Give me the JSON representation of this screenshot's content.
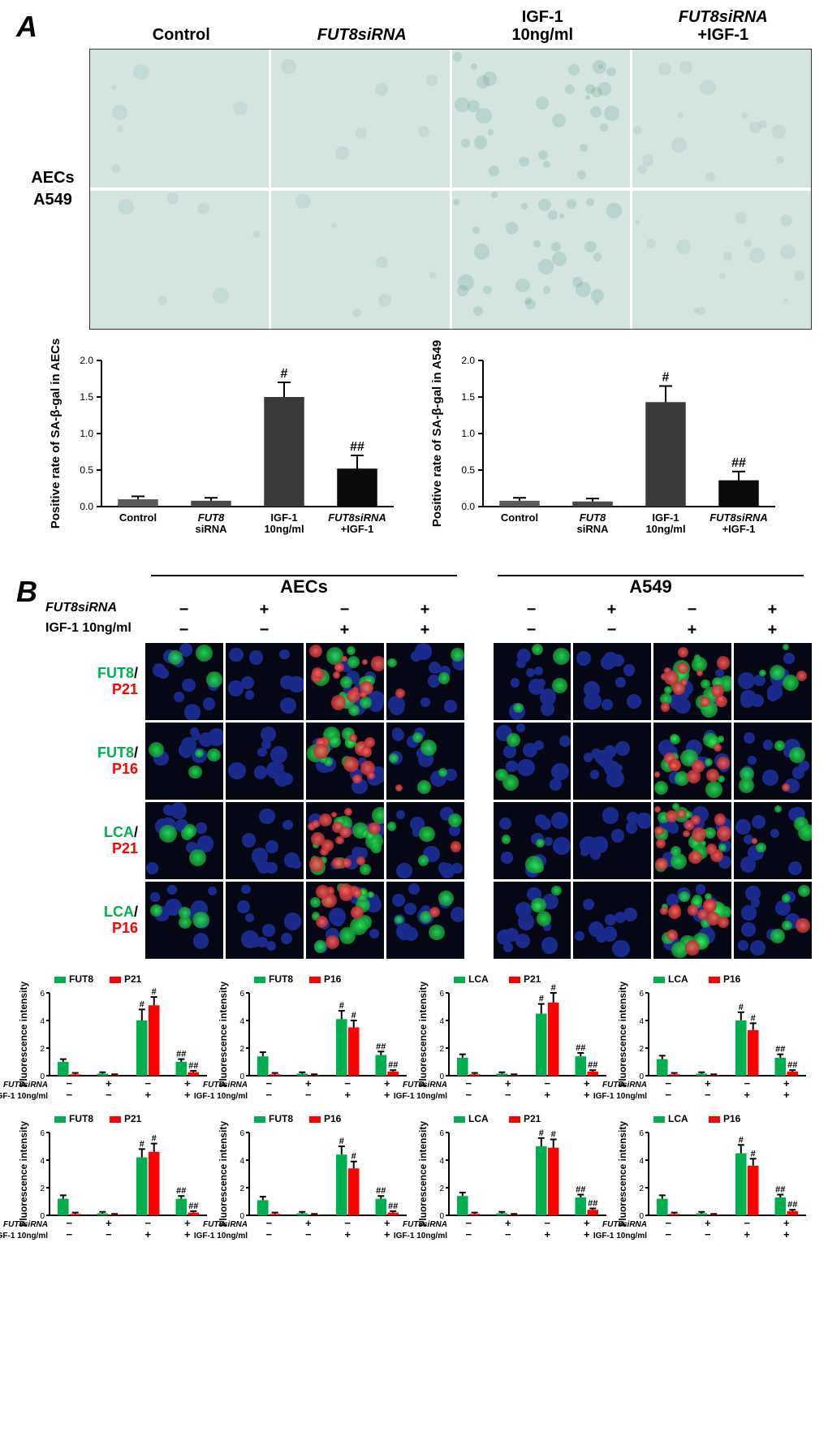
{
  "panelA": {
    "label": "A",
    "col_headers": [
      "Control",
      "FUT8siRNA",
      "IGF-1\n10ng/ml",
      "FUT8siRNA\n+IGF-1"
    ],
    "row_labels": [
      "AECs",
      "A549"
    ],
    "staining_intensity": {
      "AECs": [
        "light",
        "light",
        "heavy",
        "medium"
      ],
      "A549": [
        "light",
        "light",
        "heavy",
        "medium"
      ]
    },
    "charts": [
      {
        "ytitle": "Positive rate of SA-β-gal in AECs",
        "ymax": 2.0,
        "ytick": 0.5,
        "categories": [
          "Control",
          "FUT8\nsiRNA",
          "IGF-1\n10ng/ml",
          "FUT8siRNA\n+IGF-1"
        ],
        "values": [
          0.1,
          0.08,
          1.5,
          0.52
        ],
        "errors": [
          0.04,
          0.04,
          0.2,
          0.18
        ],
        "bar_colors": [
          "#5a5a5a",
          "#4a4a4a",
          "#3a3a3a",
          "#0a0a0a"
        ],
        "sig": [
          "",
          "",
          "#",
          "##"
        ]
      },
      {
        "ytitle": "Positive rate of SA-β-gal in A549",
        "ymax": 2.0,
        "ytick": 0.5,
        "categories": [
          "Control",
          "FUT8\nsiRNA",
          "IGF-1\n10ng/ml",
          "FUT8siRNA\n+IGF-1"
        ],
        "values": [
          0.08,
          0.07,
          1.43,
          0.36
        ],
        "errors": [
          0.04,
          0.04,
          0.22,
          0.12
        ],
        "bar_colors": [
          "#5a5a5a",
          "#4a4a4a",
          "#3a3a3a",
          "#0a0a0a"
        ],
        "sig": [
          "",
          "",
          "#",
          "##"
        ]
      }
    ]
  },
  "panelB": {
    "label": "B",
    "groups": [
      "AECs",
      "A549"
    ],
    "treat_labels": [
      "FUT8siRNA",
      "IGF-1 10ng/ml"
    ],
    "treat_matrix": [
      [
        "−",
        "+",
        "−",
        "+"
      ],
      [
        "−",
        "−",
        "+",
        "+"
      ]
    ],
    "row_pairs": [
      {
        "g": "FUT8",
        "r": "P21"
      },
      {
        "g": "FUT8",
        "r": "P16"
      },
      {
        "g": "LCA",
        "r": "P21"
      },
      {
        "g": "LCA",
        "r": "P16"
      }
    ],
    "if_intensity": {
      "AECs": [
        [
          {
            "g": 1,
            "r": 0
          },
          {
            "g": 0,
            "r": 0
          },
          {
            "g": 4,
            "r": 5
          },
          {
            "g": 1,
            "r": 0.3
          }
        ],
        [
          {
            "g": 1.4,
            "r": 0
          },
          {
            "g": 0,
            "r": 0
          },
          {
            "g": 4.1,
            "r": 3.5
          },
          {
            "g": 1.5,
            "r": 0.3
          }
        ],
        [
          {
            "g": 1.3,
            "r": 0
          },
          {
            "g": 0,
            "r": 0
          },
          {
            "g": 4.5,
            "r": 5.3
          },
          {
            "g": 1.4,
            "r": 0.3
          }
        ],
        [
          {
            "g": 1.2,
            "r": 0
          },
          {
            "g": 0,
            "r": 0
          },
          {
            "g": 4.0,
            "r": 3.3
          },
          {
            "g": 1.3,
            "r": 0.3
          }
        ]
      ],
      "A549": [
        [
          {
            "g": 1.2,
            "r": 0
          },
          {
            "g": 0,
            "r": 0
          },
          {
            "g": 4.2,
            "r": 4.6
          },
          {
            "g": 1.2,
            "r": 0.2
          }
        ],
        [
          {
            "g": 1.1,
            "r": 0
          },
          {
            "g": 0,
            "r": 0
          },
          {
            "g": 4.4,
            "r": 3.4
          },
          {
            "g": 1.2,
            "r": 0.2
          }
        ],
        [
          {
            "g": 1.4,
            "r": 0
          },
          {
            "g": 0,
            "r": 0
          },
          {
            "g": 5.0,
            "r": 4.9
          },
          {
            "g": 1.3,
            "r": 0.4
          }
        ],
        [
          {
            "g": 1.2,
            "r": 0
          },
          {
            "g": 0,
            "r": 0
          },
          {
            "g": 4.5,
            "r": 3.6
          },
          {
            "g": 1.3,
            "r": 0.3
          }
        ]
      ]
    },
    "quant_rows": [
      {
        "cell_line": "AECs",
        "charts": [
          {
            "g_name": "FUT8",
            "r_name": "P21",
            "ymax": 6,
            "g": [
              1.0,
              0.15,
              4.0,
              1.0
            ],
            "ge": [
              0.2,
              0.1,
              0.8,
              0.2
            ],
            "r": [
              0.1,
              0.05,
              5.1,
              0.25
            ],
            "re": [
              0.1,
              0.05,
              0.6,
              0.1
            ],
            "sig_g": [
              "",
              "",
              "#",
              "##"
            ],
            "sig_r": [
              "",
              "",
              "#",
              "##"
            ]
          },
          {
            "g_name": "FUT8",
            "r_name": "P16",
            "ymax": 6,
            "g": [
              1.4,
              0.15,
              4.1,
              1.5
            ],
            "ge": [
              0.3,
              0.1,
              0.6,
              0.25
            ],
            "r": [
              0.1,
              0.05,
              3.5,
              0.3
            ],
            "re": [
              0.1,
              0.05,
              0.5,
              0.1
            ],
            "sig_g": [
              "",
              "",
              "#",
              "##"
            ],
            "sig_r": [
              "",
              "",
              "#",
              "##"
            ]
          },
          {
            "g_name": "LCA",
            "r_name": "P21",
            "ymax": 6,
            "g": [
              1.3,
              0.15,
              4.5,
              1.4
            ],
            "ge": [
              0.25,
              0.1,
              0.7,
              0.25
            ],
            "r": [
              0.1,
              0.05,
              5.3,
              0.3
            ],
            "re": [
              0.1,
              0.05,
              0.7,
              0.1
            ],
            "sig_g": [
              "",
              "",
              "#",
              "##"
            ],
            "sig_r": [
              "",
              "",
              "#",
              "##"
            ]
          },
          {
            "g_name": "LCA",
            "r_name": "P16",
            "ymax": 6,
            "g": [
              1.2,
              0.15,
              4.0,
              1.3
            ],
            "ge": [
              0.25,
              0.1,
              0.6,
              0.25
            ],
            "r": [
              0.1,
              0.05,
              3.3,
              0.3
            ],
            "re": [
              0.1,
              0.05,
              0.5,
              0.1
            ],
            "sig_g": [
              "",
              "",
              "#",
              "##"
            ],
            "sig_r": [
              "",
              "",
              "#",
              "##"
            ]
          }
        ]
      },
      {
        "cell_line": "A549",
        "charts": [
          {
            "g_name": "FUT8",
            "r_name": "P21",
            "ymax": 6,
            "g": [
              1.2,
              0.15,
              4.2,
              1.2
            ],
            "ge": [
              0.25,
              0.1,
              0.6,
              0.2
            ],
            "r": [
              0.1,
              0.05,
              4.6,
              0.2
            ],
            "re": [
              0.1,
              0.05,
              0.6,
              0.1
            ],
            "sig_g": [
              "",
              "",
              "#",
              "##"
            ],
            "sig_r": [
              "",
              "",
              "#",
              "##"
            ]
          },
          {
            "g_name": "FUT8",
            "r_name": "P16",
            "ymax": 6,
            "g": [
              1.1,
              0.15,
              4.4,
              1.2
            ],
            "ge": [
              0.25,
              0.1,
              0.6,
              0.2
            ],
            "r": [
              0.1,
              0.05,
              3.4,
              0.2
            ],
            "re": [
              0.1,
              0.05,
              0.5,
              0.1
            ],
            "sig_g": [
              "",
              "",
              "#",
              "##"
            ],
            "sig_r": [
              "",
              "",
              "#",
              "##"
            ]
          },
          {
            "g_name": "LCA",
            "r_name": "P21",
            "ymax": 6,
            "g": [
              1.4,
              0.15,
              5.0,
              1.3
            ],
            "ge": [
              0.25,
              0.1,
              0.6,
              0.2
            ],
            "r": [
              0.1,
              0.05,
              4.9,
              0.4
            ],
            "re": [
              0.1,
              0.05,
              0.6,
              0.1
            ],
            "sig_g": [
              "",
              "",
              "#",
              "##"
            ],
            "sig_r": [
              "",
              "",
              "#",
              "##"
            ]
          },
          {
            "g_name": "LCA",
            "r_name": "P16",
            "ymax": 6,
            "g": [
              1.2,
              0.15,
              4.5,
              1.3
            ],
            "ge": [
              0.25,
              0.1,
              0.6,
              0.2
            ],
            "r": [
              0.1,
              0.05,
              3.6,
              0.3
            ],
            "re": [
              0.1,
              0.05,
              0.5,
              0.1
            ],
            "sig_g": [
              "",
              "",
              "#",
              "##"
            ],
            "sig_r": [
              "",
              "",
              "#",
              "##"
            ]
          }
        ]
      }
    ],
    "colors": {
      "green": "#00b050",
      "red": "#ff0000"
    }
  }
}
